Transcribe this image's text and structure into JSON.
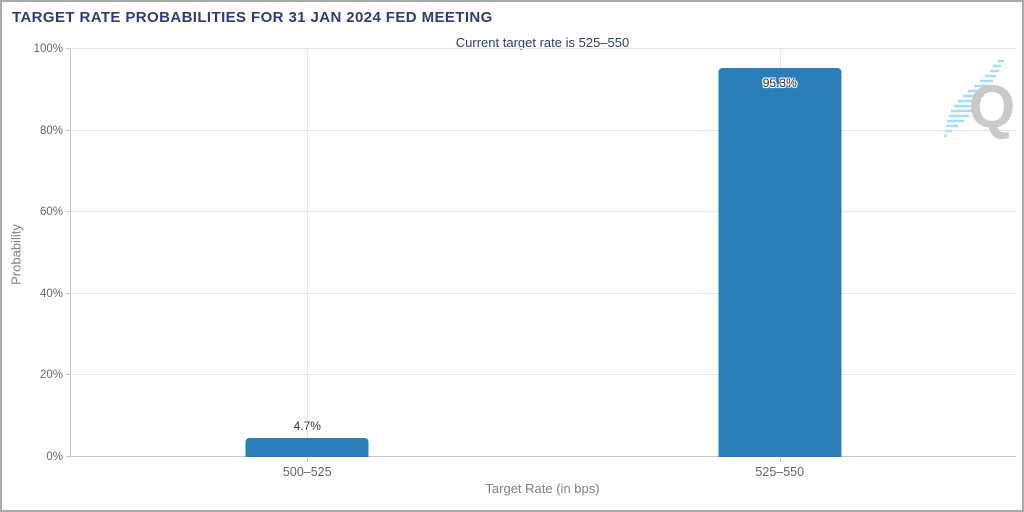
{
  "title": "TARGET RATE PROBABILITIES FOR 31 JAN 2024 FED MEETING",
  "subtitle": "Current target rate is 525–550",
  "watermark": {
    "letter": "Q",
    "icon": "q-speed-watermark"
  },
  "colors": {
    "title": "#2f3c79",
    "bar": "#2b7fb8",
    "grid": "#e6e6e6",
    "axis_line": "#c9c9c9",
    "tick_label": "#666666",
    "axis_title": "#808080",
    "data_label": "#333333",
    "watermark_q": "#c9c9c9",
    "watermark_lines": "#a5dcf7"
  },
  "chart_data": {
    "type": "bar",
    "title": "TARGET RATE PROBABILITIES FOR 31 JAN 2024 FED MEETING",
    "subtitle": "Current target rate is 525–550",
    "categories": [
      "500–525",
      "525–550"
    ],
    "values": [
      4.7,
      95.3
    ],
    "value_labels": [
      "4.7%",
      "95.3%"
    ],
    "label_placement": [
      "above",
      "inside"
    ],
    "xlabel": "Target Rate (in bps)",
    "ylabel": "Probability",
    "ylim": [
      0,
      100
    ],
    "ytick_labels": [
      "0%",
      "20%",
      "40%",
      "60%",
      "80%",
      "100%"
    ],
    "grid": true,
    "legend": "none"
  }
}
